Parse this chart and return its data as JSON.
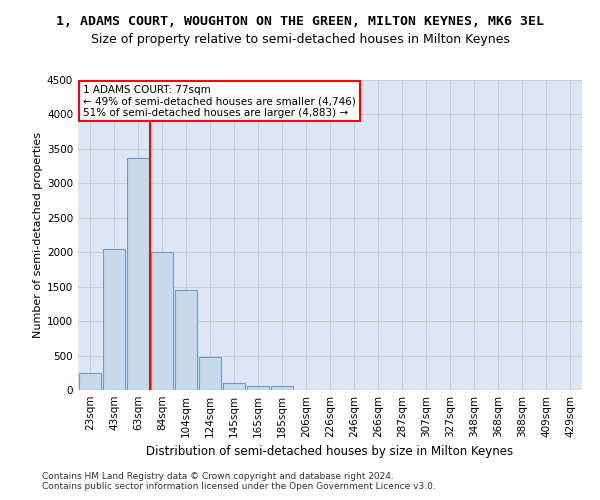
{
  "title_line1": "1, ADAMS COURT, WOUGHTON ON THE GREEN, MILTON KEYNES, MK6 3EL",
  "title_line2": "Size of property relative to semi-detached houses in Milton Keynes",
  "xlabel": "Distribution of semi-detached houses by size in Milton Keynes",
  "ylabel": "Number of semi-detached properties",
  "footer_line1": "Contains HM Land Registry data © Crown copyright and database right 2024.",
  "footer_line2": "Contains public sector information licensed under the Open Government Licence v3.0.",
  "bar_labels": [
    "23sqm",
    "43sqm",
    "63sqm",
    "84sqm",
    "104sqm",
    "124sqm",
    "145sqm",
    "165sqm",
    "185sqm",
    "206sqm",
    "226sqm",
    "246sqm",
    "266sqm",
    "287sqm",
    "307sqm",
    "327sqm",
    "348sqm",
    "368sqm",
    "388sqm",
    "409sqm",
    "429sqm"
  ],
  "bar_values": [
    250,
    2050,
    3375,
    2000,
    1450,
    480,
    100,
    60,
    55,
    0,
    0,
    0,
    0,
    0,
    0,
    0,
    0,
    0,
    0,
    0,
    0
  ],
  "bar_color": "#c9d9ec",
  "bar_edge_color": "#7399c6",
  "vline_x": 2.5,
  "property_line_label": "1 ADAMS COURT: 77sqm",
  "annotation_smaller": "← 49% of semi-detached houses are smaller (4,746)",
  "annotation_larger": "51% of semi-detached houses are larger (4,883) →",
  "vline_color": "red",
  "ylim": [
    0,
    4500
  ],
  "yticks": [
    0,
    500,
    1000,
    1500,
    2000,
    2500,
    3000,
    3500,
    4000,
    4500
  ],
  "grid_color": "#cccccc",
  "bg_color": "#dce6f5",
  "title_fontsize": 9.5,
  "subtitle_fontsize": 9.0,
  "annotation_fontsize": 7.5,
  "ylabel_fontsize": 8.0,
  "xlabel_fontsize": 8.5,
  "tick_fontsize": 7.5,
  "footer_fontsize": 6.5
}
